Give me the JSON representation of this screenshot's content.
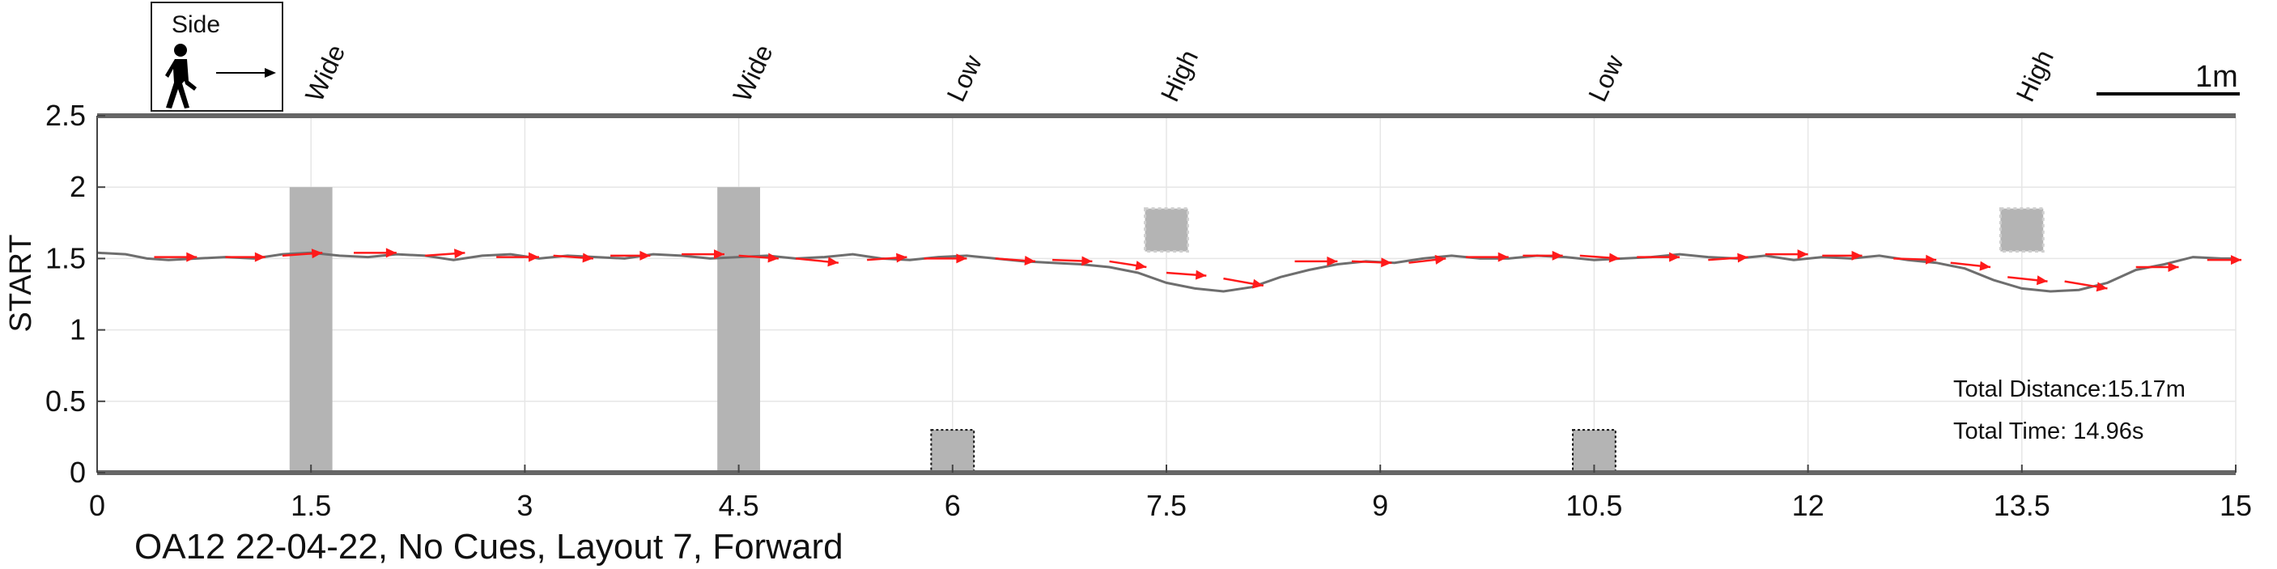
{
  "chart_data": {
    "type": "line",
    "title": "OA12 22-04-22, No Cues, Layout 7, Forward",
    "xlabel": "",
    "ylabel": "START",
    "xlim": [
      0,
      15
    ],
    "ylim": [
      0,
      2.5
    ],
    "xticks": [
      0,
      1.5,
      3,
      4.5,
      6,
      7.5,
      9,
      10.5,
      12,
      13.5,
      15
    ],
    "xtick_labels": [
      "0",
      "1.5",
      "3",
      "4.5",
      "6",
      "7.5",
      "9",
      "10.5",
      "12",
      "13.5",
      "15"
    ],
    "yticks": [
      0,
      0.5,
      1,
      1.5,
      2,
      2.5
    ],
    "ytick_labels": [
      "0",
      "0.5",
      "1",
      "1.5",
      "2",
      "2.5"
    ],
    "grid": true,
    "path": {
      "color": "#6e6e6e",
      "x": [
        0,
        0.2,
        0.35,
        0.5,
        0.7,
        0.9,
        1.1,
        1.3,
        1.5,
        1.7,
        1.9,
        2.1,
        2.3,
        2.5,
        2.7,
        2.9,
        3.1,
        3.3,
        3.5,
        3.7,
        3.9,
        4.1,
        4.3,
        4.5,
        4.7,
        4.9,
        5.1,
        5.3,
        5.5,
        5.7,
        5.9,
        6.1,
        6.3,
        6.5,
        6.7,
        6.9,
        7.1,
        7.3,
        7.5,
        7.7,
        7.9,
        8.1,
        8.3,
        8.5,
        8.7,
        8.9,
        9.1,
        9.3,
        9.5,
        9.7,
        9.9,
        10.1,
        10.3,
        10.5,
        10.7,
        10.9,
        11.1,
        11.3,
        11.5,
        11.7,
        11.9,
        12.1,
        12.3,
        12.5,
        12.7,
        12.9,
        13.1,
        13.3,
        13.5,
        13.7,
        13.9,
        14.1,
        14.3,
        14.5,
        14.7,
        14.9,
        15
      ],
      "y": [
        1.54,
        1.53,
        1.5,
        1.49,
        1.5,
        1.51,
        1.5,
        1.53,
        1.54,
        1.52,
        1.51,
        1.53,
        1.52,
        1.49,
        1.52,
        1.53,
        1.5,
        1.52,
        1.51,
        1.5,
        1.53,
        1.52,
        1.5,
        1.51,
        1.52,
        1.5,
        1.51,
        1.53,
        1.5,
        1.49,
        1.51,
        1.52,
        1.5,
        1.48,
        1.47,
        1.46,
        1.44,
        1.4,
        1.33,
        1.29,
        1.27,
        1.3,
        1.37,
        1.42,
        1.46,
        1.48,
        1.47,
        1.5,
        1.52,
        1.5,
        1.5,
        1.52,
        1.51,
        1.49,
        1.5,
        1.51,
        1.53,
        1.51,
        1.5,
        1.52,
        1.49,
        1.51,
        1.5,
        1.52,
        1.49,
        1.47,
        1.43,
        1.35,
        1.29,
        1.27,
        1.28,
        1.33,
        1.42,
        1.46,
        1.51,
        1.5,
        1.5
      ]
    },
    "arrows": {
      "color": "#ff1a1a",
      "x": [
        0.4,
        0.9,
        1.3,
        1.8,
        2.3,
        2.8,
        3.2,
        3.6,
        4.1,
        4.5,
        4.9,
        5.4,
        5.8,
        6.3,
        6.7,
        7.1,
        7.5,
        7.9,
        8.4,
        8.8,
        9.2,
        9.6,
        10.0,
        10.4,
        10.8,
        11.3,
        11.7,
        12.1,
        12.6,
        13.0,
        13.4,
        13.8,
        14.3,
        14.8
      ],
      "y": [
        1.51,
        1.51,
        1.52,
        1.54,
        1.52,
        1.51,
        1.52,
        1.52,
        1.53,
        1.52,
        1.5,
        1.49,
        1.5,
        1.5,
        1.49,
        1.48,
        1.4,
        1.36,
        1.48,
        1.48,
        1.47,
        1.51,
        1.52,
        1.52,
        1.51,
        1.49,
        1.53,
        1.52,
        1.5,
        1.47,
        1.37,
        1.34,
        1.44,
        1.49
      ],
      "dx": [
        0.3,
        0.28,
        0.28,
        0.3,
        0.28,
        0.3,
        0.28,
        0.28,
        0.3,
        0.28,
        0.3,
        0.28,
        0.3,
        0.28,
        0.28,
        0.26,
        0.28,
        0.28,
        0.3,
        0.28,
        0.26,
        0.3,
        0.28,
        0.28,
        0.3,
        0.28,
        0.3,
        0.28,
        0.3,
        0.28,
        0.28,
        0.3,
        0.3,
        0.24
      ],
      "dy": [
        0.0,
        0.0,
        0.02,
        0.0,
        0.02,
        0.0,
        -0.02,
        0.0,
        0.0,
        -0.02,
        -0.03,
        0.02,
        0.0,
        -0.02,
        -0.01,
        -0.04,
        -0.02,
        -0.05,
        0.0,
        -0.01,
        0.03,
        0.0,
        0.0,
        -0.02,
        0.0,
        0.02,
        0.0,
        0.0,
        -0.01,
        -0.03,
        -0.03,
        -0.05,
        0.0,
        0.0
      ]
    },
    "obstacles": [
      {
        "label": "Wide",
        "x": 1.5,
        "y_bottom": 0,
        "y_top": 2.0,
        "type": "wide"
      },
      {
        "label": "Wide",
        "x": 4.5,
        "y_bottom": 0,
        "y_top": 2.0,
        "type": "wide"
      },
      {
        "label": "Low",
        "x": 6.0,
        "y_bottom": 0,
        "y_top": 0.3,
        "type": "low"
      },
      {
        "label": "High",
        "x": 7.5,
        "y_bottom": 1.55,
        "y_top": 1.85,
        "type": "high"
      },
      {
        "label": "Low",
        "x": 10.5,
        "y_bottom": 0,
        "y_top": 0.3,
        "type": "low"
      },
      {
        "label": "High",
        "x": 13.5,
        "y_bottom": 1.55,
        "y_top": 1.85,
        "type": "high"
      }
    ],
    "annotations": {
      "total_distance": "Total Distance:15.17m",
      "total_time": "Total Time: 14.96s",
      "scale_bar": "1m",
      "legend_label": "Side"
    }
  }
}
